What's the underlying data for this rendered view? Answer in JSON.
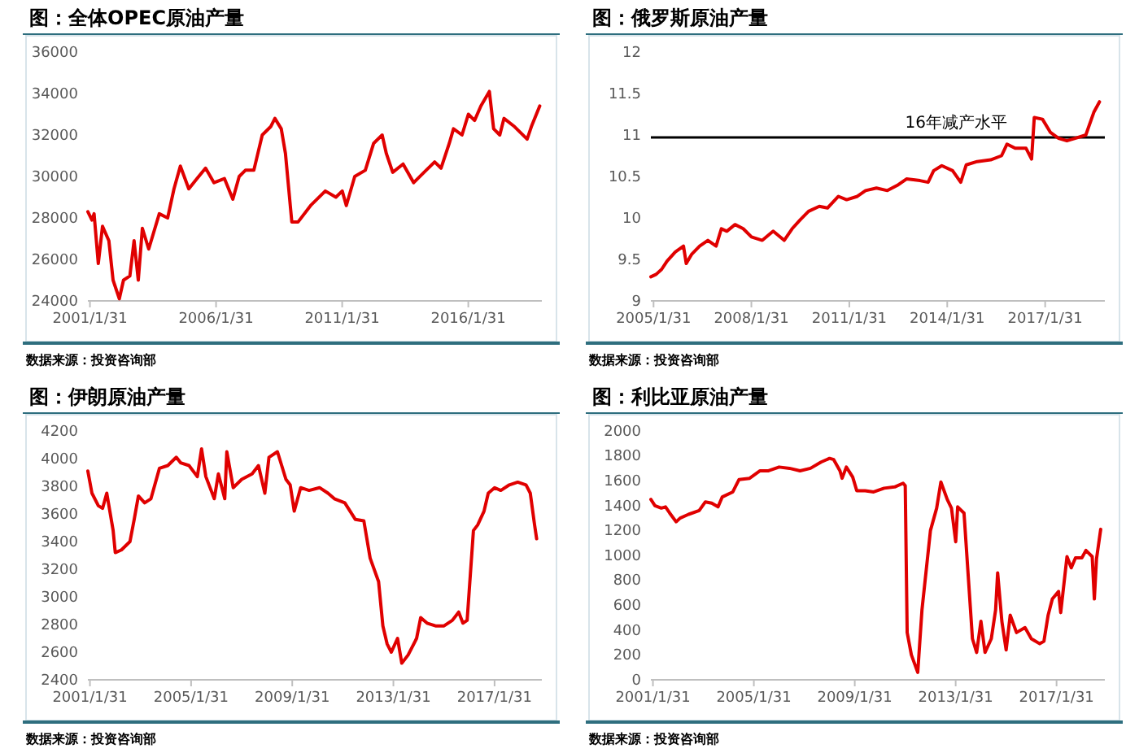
{
  "chart_data": [
    {
      "type": "line",
      "title": "图：全体OPEC原油产量",
      "annotations": [
        "数据来源：投资咨询部"
      ],
      "grid": false,
      "marker": "none",
      "line_style": "solid",
      "xlim": [
        "2001-01-01",
        "2018-12-31"
      ],
      "xticks": [
        {
          "value": "2001-01-31",
          "label": "2001/1/31"
        },
        {
          "value": "2006-01-31",
          "label": "2006/1/31"
        },
        {
          "value": "2011-01-31",
          "label": "2011/1/31"
        },
        {
          "value": "2016-01-31",
          "label": "2016/1/31"
        }
      ],
      "ylim": [
        24000,
        36000
      ],
      "yticks": [
        24000,
        26000,
        28000,
        30000,
        32000,
        34000,
        36000
      ],
      "series": [
        {
          "color": "#e00000",
          "x": [
            "2001-01",
            "2001-03",
            "2001-04",
            "2001-06",
            "2001-08",
            "2001-11",
            "2002-01",
            "2002-04",
            "2002-06",
            "2002-09",
            "2002-11",
            "2003-01",
            "2003-03",
            "2003-06",
            "2003-11",
            "2004-03",
            "2004-06",
            "2004-09",
            "2005-01",
            "2005-05",
            "2005-09",
            "2006-01",
            "2006-06",
            "2006-10",
            "2007-01",
            "2007-04",
            "2007-08",
            "2007-12",
            "2008-04",
            "2008-06",
            "2008-09",
            "2008-11",
            "2009-02",
            "2009-05",
            "2009-11",
            "2010-06",
            "2010-11",
            "2011-02",
            "2011-04",
            "2011-08",
            "2012-01",
            "2012-05",
            "2012-09",
            "2012-11",
            "2013-02",
            "2013-07",
            "2013-12",
            "2014-05",
            "2014-10",
            "2015-01",
            "2015-05",
            "2015-07",
            "2015-11",
            "2016-02",
            "2016-05",
            "2016-08",
            "2016-12",
            "2017-02",
            "2017-05",
            "2017-07",
            "2017-12",
            "2018-03",
            "2018-06",
            "2018-08",
            "2018-12"
          ],
          "values": [
            28300,
            27900,
            28200,
            25800,
            27600,
            26900,
            25000,
            24100,
            25000,
            25200,
            26900,
            25000,
            27500,
            26500,
            28200,
            28000,
            29400,
            30500,
            29400,
            29900,
            30400,
            29700,
            29900,
            28900,
            30000,
            30300,
            30300,
            32000,
            32400,
            32800,
            32300,
            31100,
            27800,
            27800,
            28600,
            29300,
            29000,
            29300,
            28600,
            30000,
            30300,
            31600,
            32000,
            31100,
            30200,
            30600,
            29700,
            30200,
            30700,
            30400,
            31600,
            32300,
            32000,
            33000,
            32700,
            33400,
            34100,
            32300,
            32000,
            32800,
            32400,
            32100,
            31800,
            32400,
            33400
          ]
        }
      ]
    },
    {
      "type": "line",
      "title": "图：俄罗斯原油产量",
      "annotations": [
        "数据来源：投资咨询部"
      ],
      "grid": false,
      "marker": "none",
      "line_style": "solid",
      "xlim": [
        "2005-01-01",
        "2018-11-30"
      ],
      "xticks": [
        {
          "value": "2005-01-31",
          "label": "2005/1/31"
        },
        {
          "value": "2008-01-31",
          "label": "2008/1/31"
        },
        {
          "value": "2011-01-31",
          "label": "2011/1/31"
        },
        {
          "value": "2014-01-31",
          "label": "2014/1/31"
        },
        {
          "value": "2017-01-31",
          "label": "2017/1/31"
        }
      ],
      "ylim": [
        9,
        12
      ],
      "yticks": [
        9,
        9.5,
        10,
        10.5,
        11,
        11.5,
        12
      ],
      "ref_lines": [
        {
          "axis": "y",
          "value": 10.97,
          "label": "16年减产水平",
          "color": "#000000"
        }
      ],
      "series": [
        {
          "color": "#e00000",
          "x": [
            "2005-01",
            "2005-03",
            "2005-05",
            "2005-07",
            "2005-10",
            "2006-01",
            "2006-02",
            "2006-04",
            "2006-07",
            "2006-10",
            "2007-01",
            "2007-03",
            "2007-05",
            "2007-08",
            "2007-11",
            "2008-02",
            "2008-06",
            "2008-10",
            "2009-02",
            "2009-05",
            "2009-08",
            "2009-11",
            "2010-03",
            "2010-06",
            "2010-10",
            "2011-01",
            "2011-05",
            "2011-08",
            "2011-12",
            "2012-04",
            "2012-08",
            "2012-11",
            "2013-04",
            "2013-07",
            "2013-09",
            "2013-12",
            "2014-04",
            "2014-07",
            "2014-09",
            "2015-01",
            "2015-06",
            "2015-10",
            "2015-12",
            "2016-03",
            "2016-07",
            "2016-09",
            "2016-10",
            "2017-01",
            "2017-04",
            "2017-07",
            "2017-10",
            "2018-01",
            "2018-05",
            "2018-08",
            "2018-10"
          ],
          "values": [
            9.29,
            9.32,
            9.38,
            9.48,
            9.59,
            9.66,
            9.45,
            9.56,
            9.66,
            9.73,
            9.66,
            9.87,
            9.84,
            9.92,
            9.87,
            9.77,
            9.73,
            9.84,
            9.73,
            9.87,
            9.98,
            10.08,
            10.14,
            10.12,
            10.26,
            10.22,
            10.26,
            10.33,
            10.36,
            10.33,
            10.4,
            10.47,
            10.45,
            10.43,
            10.57,
            10.63,
            10.57,
            10.43,
            10.64,
            10.68,
            10.7,
            10.75,
            10.89,
            10.84,
            10.84,
            10.71,
            11.21,
            11.19,
            11.03,
            10.96,
            10.93,
            10.96,
            11.0,
            11.28,
            11.4
          ]
        }
      ]
    },
    {
      "type": "line",
      "title": "图：伊朗原油产量",
      "annotations": [
        "数据来源：投资咨询部"
      ],
      "grid": false,
      "marker": "none",
      "line_style": "solid",
      "xlim": [
        "2001-01-01",
        "2018-12-15"
      ],
      "xticks": [
        {
          "value": "2001-01-31",
          "label": "2001/1/31"
        },
        {
          "value": "2005-01-31",
          "label": "2005/1/31"
        },
        {
          "value": "2009-01-31",
          "label": "2009/1/31"
        },
        {
          "value": "2013-01-31",
          "label": "2013/1/31"
        },
        {
          "value": "2017-01-31",
          "label": "2017/1/31"
        }
      ],
      "ylim": [
        2400,
        4200
      ],
      "yticks": [
        2400,
        2600,
        2800,
        3000,
        3200,
        3400,
        3600,
        3800,
        4000,
        4200
      ],
      "series": [
        {
          "color": "#e00000",
          "x": [
            "2001-01",
            "2001-03",
            "2001-06",
            "2001-08",
            "2001-10",
            "2002-01",
            "2002-02",
            "2002-05",
            "2002-09",
            "2002-11",
            "2003-01",
            "2003-04",
            "2003-07",
            "2003-11",
            "2004-03",
            "2004-07",
            "2004-09",
            "2005-01",
            "2005-05",
            "2005-07",
            "2005-09",
            "2006-01",
            "2006-03",
            "2006-06",
            "2006-07",
            "2006-10",
            "2007-02",
            "2007-07",
            "2007-10",
            "2008-01",
            "2008-03",
            "2008-07",
            "2008-11",
            "2009-01",
            "2009-03",
            "2009-06",
            "2009-10",
            "2010-03",
            "2010-07",
            "2010-10",
            "2011-03",
            "2011-08",
            "2011-12",
            "2012-03",
            "2012-07",
            "2012-09",
            "2012-11",
            "2013-01",
            "2013-04",
            "2013-06",
            "2013-09",
            "2014-01",
            "2014-03",
            "2014-06",
            "2014-10",
            "2015-02",
            "2015-06",
            "2015-09",
            "2015-11",
            "2016-01",
            "2016-04",
            "2016-06",
            "2016-09",
            "2016-11",
            "2017-02",
            "2017-05",
            "2017-09",
            "2018-01",
            "2018-05",
            "2018-07",
            "2018-09",
            "2018-10"
          ],
          "values": [
            3910,
            3750,
            3660,
            3640,
            3750,
            3480,
            3320,
            3340,
            3400,
            3560,
            3730,
            3680,
            3710,
            3930,
            3950,
            4010,
            3970,
            3950,
            3870,
            4070,
            3870,
            3710,
            3890,
            3710,
            4050,
            3790,
            3850,
            3890,
            3950,
            3750,
            4010,
            4050,
            3850,
            3810,
            3620,
            3790,
            3770,
            3790,
            3750,
            3710,
            3680,
            3560,
            3550,
            3280,
            3110,
            2790,
            2660,
            2600,
            2700,
            2520,
            2580,
            2700,
            2850,
            2810,
            2790,
            2790,
            2830,
            2890,
            2810,
            2830,
            3480,
            3520,
            3620,
            3750,
            3790,
            3770,
            3810,
            3830,
            3810,
            3750,
            3520,
            3420
          ]
        }
      ]
    },
    {
      "type": "line",
      "title": "图：利比亚原油产量",
      "annotations": [
        "数据来源：投资咨询部"
      ],
      "grid": false,
      "marker": "none",
      "line_style": "solid",
      "xlim": [
        "2001-01-01",
        "2018-12-31"
      ],
      "xticks": [
        {
          "value": "2001-01-31",
          "label": "2001/1/31"
        },
        {
          "value": "2005-01-31",
          "label": "2005/1/31"
        },
        {
          "value": "2009-01-31",
          "label": "2009/1/31"
        },
        {
          "value": "2013-01-31",
          "label": "2013/1/31"
        },
        {
          "value": "2017-01-31",
          "label": "2017/1/31"
        }
      ],
      "ylim": [
        0,
        2000
      ],
      "yticks": [
        0,
        200,
        400,
        600,
        800,
        1000,
        1200,
        1400,
        1600,
        1800,
        2000
      ],
      "series": [
        {
          "color": "#e00000",
          "x": [
            "2001-01",
            "2001-03",
            "2001-06",
            "2001-08",
            "2001-10",
            "2002-01",
            "2002-03",
            "2002-07",
            "2002-12",
            "2003-03",
            "2003-06",
            "2003-09",
            "2003-11",
            "2004-04",
            "2004-07",
            "2004-12",
            "2005-05",
            "2005-09",
            "2006-02",
            "2006-07",
            "2006-12",
            "2007-05",
            "2007-10",
            "2008-02",
            "2008-04",
            "2008-07",
            "2008-08",
            "2008-10",
            "2009-01",
            "2009-03",
            "2009-07",
            "2009-11",
            "2010-04",
            "2010-09",
            "2011-01",
            "2011-02",
            "2011-03",
            "2011-05",
            "2011-08",
            "2011-10",
            "2012-02",
            "2012-05",
            "2012-07",
            "2012-10",
            "2012-12",
            "2013-02",
            "2013-03",
            "2013-06",
            "2013-10",
            "2013-12",
            "2014-02",
            "2014-04",
            "2014-07",
            "2014-09",
            "2014-10",
            "2014-12",
            "2015-02",
            "2015-04",
            "2015-07",
            "2015-11",
            "2016-02",
            "2016-06",
            "2016-08",
            "2016-10",
            "2016-12",
            "2017-03",
            "2017-04",
            "2017-07",
            "2017-09",
            "2017-11",
            "2018-02",
            "2018-04",
            "2018-07",
            "2018-08",
            "2018-09",
            "2018-11"
          ],
          "values": [
            1450,
            1400,
            1380,
            1390,
            1340,
            1270,
            1300,
            1330,
            1360,
            1430,
            1420,
            1390,
            1470,
            1510,
            1610,
            1620,
            1680,
            1680,
            1710,
            1700,
            1680,
            1700,
            1750,
            1780,
            1770,
            1680,
            1620,
            1710,
            1630,
            1520,
            1520,
            1510,
            1540,
            1550,
            1580,
            1560,
            380,
            200,
            60,
            560,
            1200,
            1380,
            1590,
            1450,
            1380,
            1110,
            1390,
            1340,
            330,
            220,
            470,
            220,
            330,
            560,
            860,
            470,
            240,
            520,
            380,
            420,
            330,
            290,
            310,
            520,
            650,
            710,
            540,
            990,
            900,
            980,
            980,
            1040,
            990,
            650,
            970,
            1210
          ]
        }
      ]
    }
  ]
}
